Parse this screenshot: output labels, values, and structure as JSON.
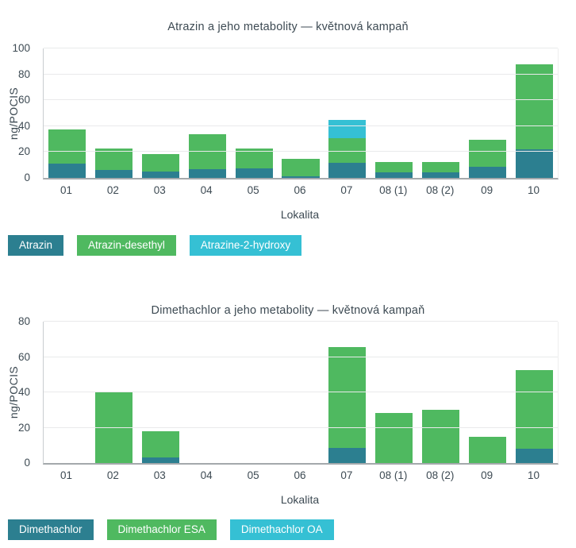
{
  "chart_data": [
    {
      "type": "bar",
      "stacked": true,
      "title": "Atrazin a jeho metabolity — květnová kampaň",
      "xlabel": "Lokalita",
      "ylabel": "ng/POCIS",
      "ylim": [
        0,
        100
      ],
      "yticks": [
        0,
        20,
        40,
        60,
        80,
        100
      ],
      "grid": true,
      "legend_position": "bottom-left",
      "categories": [
        "01",
        "02",
        "03",
        "04",
        "05",
        "06",
        "07",
        "08 (1)",
        "08 (2)",
        "09",
        "10"
      ],
      "series": [
        {
          "name": "Atrazin",
          "color": "#2c7f90",
          "values": [
            11,
            6,
            5,
            6.5,
            7.5,
            1.5,
            11.5,
            4.5,
            4,
            8.5,
            22
          ]
        },
        {
          "name": "Atrazin-desethyl",
          "color": "#4fb960",
          "values": [
            26.5,
            16.5,
            13.5,
            27,
            15,
            13.5,
            19,
            7.5,
            8,
            21,
            65.5
          ]
        },
        {
          "name": "Atrazine-2-hydroxy",
          "color": "#35c0d4",
          "values": [
            0,
            0,
            0,
            0,
            0,
            0,
            14,
            0,
            0,
            0,
            0
          ]
        }
      ]
    },
    {
      "type": "bar",
      "stacked": true,
      "title": "Dimethachlor a jeho metabolity — květnová kampaň",
      "xlabel": "Lokalita",
      "ylabel": "ng/POCIS",
      "ylim": [
        0,
        80
      ],
      "yticks": [
        0,
        20,
        40,
        60,
        80
      ],
      "grid": true,
      "legend_position": "bottom-left",
      "categories": [
        "01",
        "02",
        "03",
        "04",
        "05",
        "06",
        "07",
        "08 (1)",
        "08 (2)",
        "09",
        "10"
      ],
      "series": [
        {
          "name": "Dimethachlor",
          "color": "#2c7f90",
          "values": [
            0,
            0,
            3,
            0,
            0,
            0,
            8.5,
            0,
            0,
            0,
            8
          ]
        },
        {
          "name": "Dimethachlor ESA",
          "color": "#4fb960",
          "values": [
            0,
            40,
            15,
            0,
            0,
            0,
            57,
            28.5,
            30,
            15,
            44.5
          ]
        },
        {
          "name": "Dimethachlor OA",
          "color": "#35c0d4",
          "values": [
            0,
            0,
            0,
            0,
            0,
            0,
            0,
            0,
            0,
            0,
            0
          ]
        }
      ]
    }
  ]
}
